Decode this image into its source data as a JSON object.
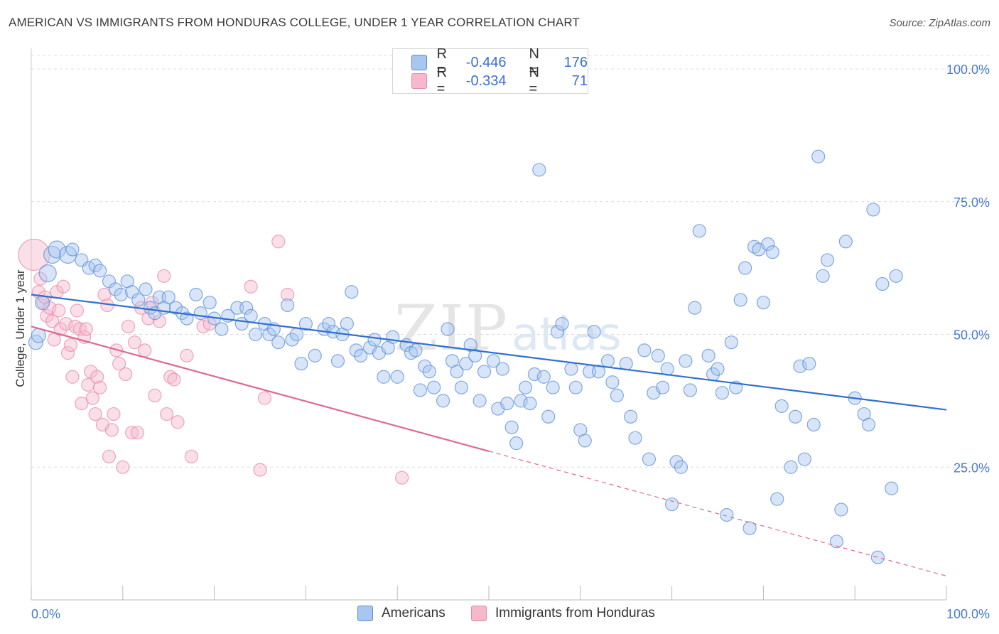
{
  "title": "AMERICAN VS IMMIGRANTS FROM HONDURAS COLLEGE, UNDER 1 YEAR CORRELATION CHART",
  "source": "Source: ZipAtlas.com",
  "legend": {
    "rows": [
      {
        "r_label": "R =",
        "r_value": "-0.446",
        "n_label": "N =",
        "n_value": "176"
      },
      {
        "r_label": "R =",
        "r_value": "-0.334",
        "n_label": "N =",
        "n_value": "71"
      }
    ]
  },
  "bottom_legend": [
    "Americans",
    "Immigrants from Honduras"
  ],
  "colors": {
    "americans_fill": "#a9c6f0",
    "americans_stroke": "#5b8fd6",
    "americans_line": "#2f6fd0",
    "honduras_fill": "#f6b9cb",
    "honduras_stroke": "#e58aa8",
    "honduras_line": "#e0688f",
    "tick_text": "#4a7bd0",
    "grid": "#dcdcdc"
  },
  "chart_data": {
    "type": "scatter",
    "title": "AMERICAN VS IMMIGRANTS FROM HONDURAS COLLEGE, UNDER 1 YEAR CORRELATION CHART",
    "xlabel": "",
    "ylabel": "College, Under 1 year",
    "xlim": [
      0,
      100
    ],
    "ylim": [
      0,
      104
    ],
    "x_tick_labels": [
      "0.0%",
      "100.0%"
    ],
    "y_ticks": [
      25,
      50,
      75,
      100
    ],
    "y_tick_labels": [
      "25.0%",
      "50.0%",
      "75.0%",
      "100.0%"
    ],
    "grid": "horizontal dashed",
    "legend_position": "top-center",
    "series": [
      {
        "name": "Americans",
        "r": -0.446,
        "n": 176,
        "trend": {
          "x": [
            0,
            100
          ],
          "y": [
            57.5,
            35.8
          ],
          "dashed_from": null
        },
        "points": [
          [
            0.5,
            48.5
          ],
          [
            0.8,
            49.8
          ],
          [
            1.2,
            56
          ],
          [
            1.8,
            61.5
          ],
          [
            2.3,
            65
          ],
          [
            2.8,
            66
          ],
          [
            4,
            65
          ],
          [
            4.5,
            66
          ],
          [
            5.5,
            64
          ],
          [
            6.3,
            62.5
          ],
          [
            7,
            63
          ],
          [
            7.5,
            62
          ],
          [
            8.5,
            60
          ],
          [
            9.2,
            58.5
          ],
          [
            9.8,
            57.5
          ],
          [
            10.5,
            60
          ],
          [
            11,
            58
          ],
          [
            11.7,
            56.5
          ],
          [
            12.5,
            58.5
          ],
          [
            13,
            55
          ],
          [
            13.5,
            54
          ],
          [
            14,
            57
          ],
          [
            14.5,
            55
          ],
          [
            15,
            57
          ],
          [
            15.8,
            55
          ],
          [
            16.5,
            54
          ],
          [
            17,
            53
          ],
          [
            18,
            57.5
          ],
          [
            18.5,
            54
          ],
          [
            19.5,
            56
          ],
          [
            20,
            53
          ],
          [
            20.8,
            51
          ],
          [
            21.5,
            53.5
          ],
          [
            22.5,
            55
          ],
          [
            23,
            52
          ],
          [
            23.5,
            55
          ],
          [
            24,
            53.5
          ],
          [
            24.5,
            50
          ],
          [
            25.5,
            52
          ],
          [
            26,
            50
          ],
          [
            26.5,
            51
          ],
          [
            27,
            48.5
          ],
          [
            28,
            55.5
          ],
          [
            28.5,
            49
          ],
          [
            29,
            50
          ],
          [
            30,
            52
          ],
          [
            29.5,
            44.5
          ],
          [
            31,
            46
          ],
          [
            32,
            51
          ],
          [
            32.5,
            52
          ],
          [
            33,
            50.5
          ],
          [
            33.5,
            45
          ],
          [
            34,
            50
          ],
          [
            34.5,
            52
          ],
          [
            35,
            58
          ],
          [
            35.5,
            47
          ],
          [
            36,
            46
          ],
          [
            37,
            47.5
          ],
          [
            37.5,
            49
          ],
          [
            38,
            46.5
          ],
          [
            38.5,
            42
          ],
          [
            39,
            47.5
          ],
          [
            39.5,
            49.5
          ],
          [
            40,
            42
          ],
          [
            41,
            48
          ],
          [
            41.5,
            46.5
          ],
          [
            42,
            47
          ],
          [
            42.5,
            39.5
          ],
          [
            43,
            44
          ],
          [
            43.5,
            43
          ],
          [
            44,
            40
          ],
          [
            45,
            37.5
          ],
          [
            45.5,
            51
          ],
          [
            46,
            45
          ],
          [
            46.5,
            43
          ],
          [
            47,
            40
          ],
          [
            47.5,
            44.5
          ],
          [
            48,
            48
          ],
          [
            48.5,
            46
          ],
          [
            49,
            37.5
          ],
          [
            49.5,
            43
          ],
          [
            50.5,
            45
          ],
          [
            51,
            36
          ],
          [
            51.5,
            43.5
          ],
          [
            52,
            37
          ],
          [
            52.5,
            32.5
          ],
          [
            53,
            29.5
          ],
          [
            53.5,
            37.5
          ],
          [
            54,
            40
          ],
          [
            54.5,
            37
          ],
          [
            55,
            42.5
          ],
          [
            55.5,
            81
          ],
          [
            56,
            42
          ],
          [
            56.5,
            34.5
          ],
          [
            57,
            40
          ],
          [
            57.5,
            50.5
          ],
          [
            58,
            52
          ],
          [
            59,
            43.5
          ],
          [
            59.5,
            40
          ],
          [
            60,
            32
          ],
          [
            60.5,
            30
          ],
          [
            61,
            43
          ],
          [
            61.5,
            50.5
          ],
          [
            62,
            43
          ],
          [
            63,
            45
          ],
          [
            63.5,
            41
          ],
          [
            64,
            38.5
          ],
          [
            65,
            44.5
          ],
          [
            65.5,
            34.5
          ],
          [
            66,
            30.5
          ],
          [
            67,
            47
          ],
          [
            67.5,
            26.5
          ],
          [
            68,
            39
          ],
          [
            68.5,
            46
          ],
          [
            69,
            40
          ],
          [
            69.5,
            43.5
          ],
          [
            70,
            18
          ],
          [
            70.5,
            26
          ],
          [
            71,
            25
          ],
          [
            71.5,
            45
          ],
          [
            72,
            39.5
          ],
          [
            72.5,
            55
          ],
          [
            73,
            69.5
          ],
          [
            74,
            46
          ],
          [
            74.5,
            42.5
          ],
          [
            75,
            43.5
          ],
          [
            75.5,
            39
          ],
          [
            76,
            16
          ],
          [
            76.5,
            48.5
          ],
          [
            77,
            40
          ],
          [
            77.5,
            56.5
          ],
          [
            78,
            62.5
          ],
          [
            78.5,
            13.5
          ],
          [
            79,
            66.5
          ],
          [
            79.5,
            66
          ],
          [
            80,
            56
          ],
          [
            80.5,
            67
          ],
          [
            81,
            65.5
          ],
          [
            81.5,
            19
          ],
          [
            82,
            36.5
          ],
          [
            83,
            25
          ],
          [
            83.5,
            34.5
          ],
          [
            84,
            44
          ],
          [
            84.5,
            26.5
          ],
          [
            85,
            44.5
          ],
          [
            85.5,
            33
          ],
          [
            86,
            83.5
          ],
          [
            86.5,
            61
          ],
          [
            87,
            64
          ],
          [
            88,
            11
          ],
          [
            88.5,
            17
          ],
          [
            89,
            67.5
          ],
          [
            90,
            38
          ],
          [
            91,
            35
          ],
          [
            91.5,
            33
          ],
          [
            92,
            73.5
          ],
          [
            92.5,
            8
          ],
          [
            93,
            59.5
          ],
          [
            94,
            21
          ],
          [
            94.5,
            61
          ]
        ]
      },
      {
        "name": "Immigrants from Honduras",
        "r": -0.334,
        "n": 71,
        "trend": {
          "x": [
            0,
            100
          ],
          "y": [
            51.5,
            4.5
          ],
          "dashed_from": 50
        },
        "points": [
          [
            0.3,
            65
          ],
          [
            0.8,
            58
          ],
          [
            1,
            60.5
          ],
          [
            1.3,
            56
          ],
          [
            1.5,
            57
          ],
          [
            1.7,
            53.5
          ],
          [
            2,
            55
          ],
          [
            2.3,
            52.5
          ],
          [
            2.5,
            49
          ],
          [
            2.8,
            58
          ],
          [
            3,
            54.5
          ],
          [
            3.2,
            51
          ],
          [
            3.5,
            59
          ],
          [
            3.8,
            52
          ],
          [
            4,
            46.5
          ],
          [
            4.3,
            48
          ],
          [
            4.5,
            42
          ],
          [
            4.8,
            51.5
          ],
          [
            5,
            54.5
          ],
          [
            5.3,
            51
          ],
          [
            5.5,
            37
          ],
          [
            5.8,
            49.5
          ],
          [
            6,
            51
          ],
          [
            6.2,
            40.5
          ],
          [
            6.5,
            43
          ],
          [
            6.7,
            38
          ],
          [
            7,
            35
          ],
          [
            7.2,
            42
          ],
          [
            7.5,
            40
          ],
          [
            7.8,
            33
          ],
          [
            8,
            57.5
          ],
          [
            8.3,
            55.5
          ],
          [
            8.5,
            27
          ],
          [
            8.8,
            32
          ],
          [
            9,
            35
          ],
          [
            9.3,
            47
          ],
          [
            9.6,
            44.5
          ],
          [
            10,
            25
          ],
          [
            10.3,
            42.5
          ],
          [
            10.6,
            51.5
          ],
          [
            11,
            31.5
          ],
          [
            11.3,
            48.5
          ],
          [
            11.6,
            31.5
          ],
          [
            12,
            55
          ],
          [
            12.4,
            47
          ],
          [
            12.8,
            53
          ],
          [
            13.2,
            56
          ],
          [
            13.5,
            38.5
          ],
          [
            14,
            52.5
          ],
          [
            14.5,
            61
          ],
          [
            14.8,
            35
          ],
          [
            15.2,
            42
          ],
          [
            15.6,
            41.5
          ],
          [
            16,
            33.5
          ],
          [
            17,
            46
          ],
          [
            17.5,
            27
          ],
          [
            18.8,
            51.5
          ],
          [
            19.5,
            52
          ],
          [
            24,
            59
          ],
          [
            25,
            24.5
          ],
          [
            25.5,
            38
          ],
          [
            27,
            67.5
          ],
          [
            28,
            57.5
          ],
          [
            40.5,
            23
          ]
        ]
      }
    ]
  }
}
